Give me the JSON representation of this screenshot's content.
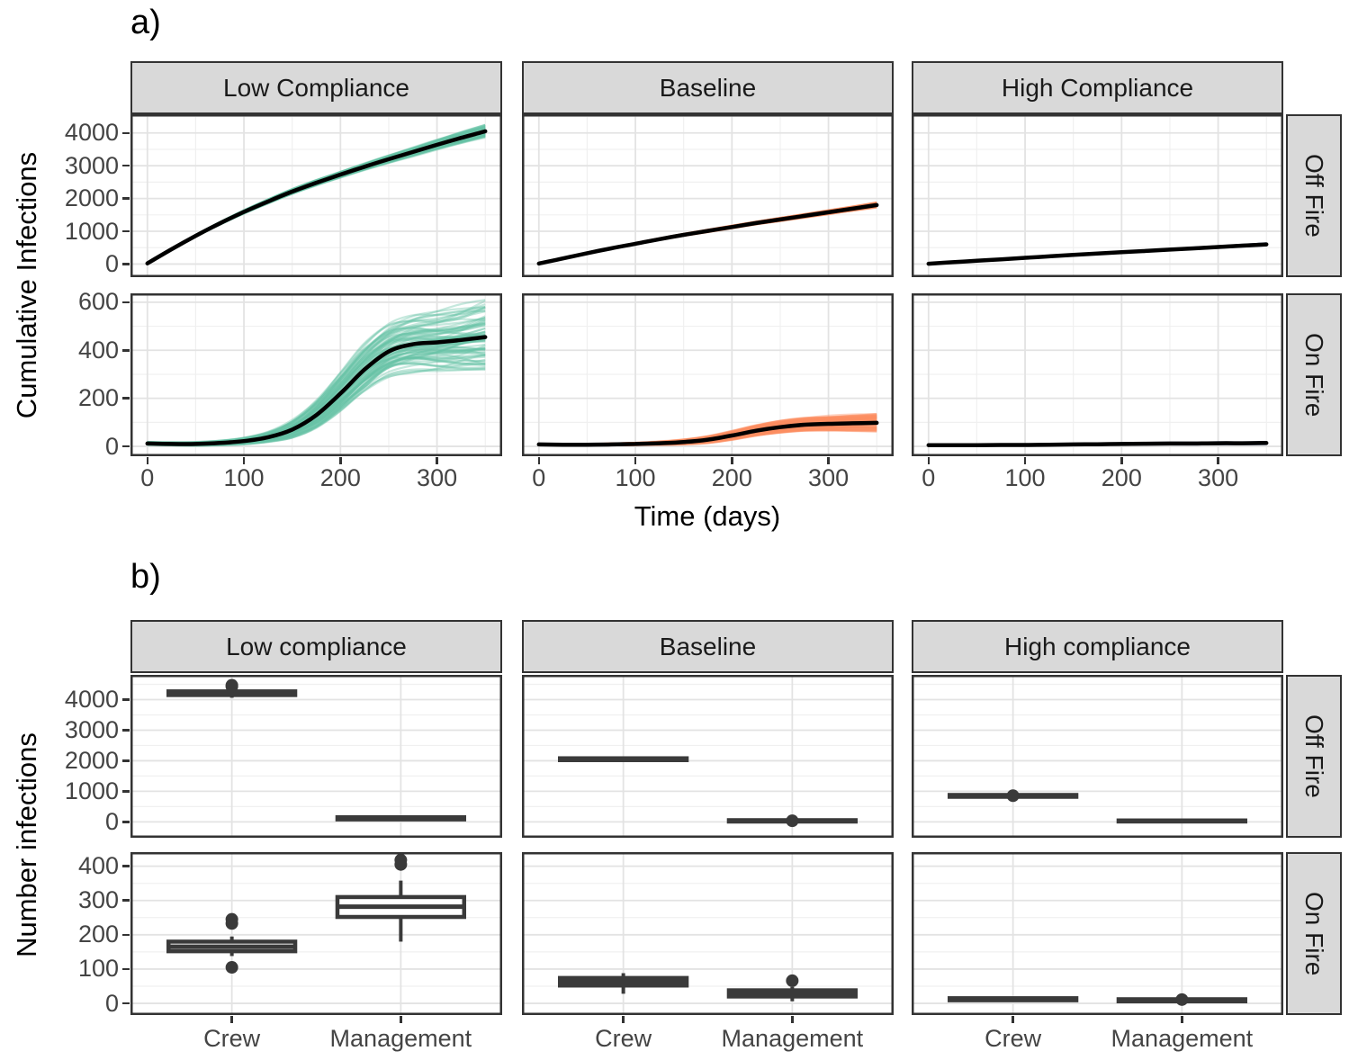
{
  "chart_data": [
    {
      "type": "line",
      "tag": "a)",
      "y_label": "Cumulative Infections",
      "x_label": "Time (days)",
      "col_strips": [
        "Low Compliance",
        "Baseline",
        "High Compliance"
      ],
      "row_strips": [
        "Off Fire",
        "On Fire"
      ],
      "x_ticks": [
        0,
        100,
        200,
        300
      ],
      "x_minor": [
        50,
        150,
        250,
        350
      ],
      "x_domain": [
        -17.5,
        367.5
      ],
      "rows": [
        {
          "y_ticks": [
            0,
            1000,
            2000,
            3000,
            4000
          ],
          "y_minor": [
            500,
            1500,
            2500,
            3500,
            4500
          ],
          "y_domain": [
            -400,
            4570
          ]
        },
        {
          "y_ticks": [
            0,
            200,
            400,
            600
          ],
          "y_minor": [
            100,
            300,
            500
          ],
          "y_domain": [
            -41,
            637
          ]
        }
      ],
      "t": [
        0,
        25,
        50,
        75,
        100,
        125,
        150,
        175,
        200,
        225,
        250,
        275,
        300,
        325,
        350
      ],
      "mean_color": "#000000",
      "facets": [
        {
          "row": 0,
          "col": 0,
          "name": "Low Compliance / Off Fire",
          "color": "#66C2A5",
          "runs": 70,
          "mean": [
            20,
            450,
            860,
            1240,
            1590,
            1910,
            2210,
            2480,
            2730,
            2970,
            3200,
            3420,
            3640,
            3850,
            4050
          ],
          "spread": [
            6,
            18,
            28,
            38,
            48,
            58,
            68,
            78,
            88,
            98,
            110,
            122,
            136,
            152,
            175
          ]
        },
        {
          "row": 0,
          "col": 1,
          "name": "Baseline / Off Fire",
          "color": "#FC8D62",
          "runs": 70,
          "mean": [
            15,
            170,
            330,
            480,
            620,
            760,
            890,
            1010,
            1130,
            1250,
            1360,
            1470,
            1580,
            1690,
            1800
          ],
          "spread": [
            4,
            8,
            12,
            16,
            20,
            24,
            28,
            32,
            36,
            40,
            45,
            50,
            55,
            60,
            68
          ]
        },
        {
          "row": 0,
          "col": 2,
          "name": "High Compliance / Off Fire",
          "color": "#8DA0CB",
          "runs": 70,
          "mean": [
            10,
            55,
            100,
            145,
            190,
            235,
            278,
            320,
            360,
            400,
            440,
            480,
            520,
            560,
            600
          ],
          "spread": [
            2,
            4,
            6,
            8,
            10,
            12,
            14,
            16,
            18,
            20,
            22,
            24,
            26,
            28,
            32
          ]
        },
        {
          "row": 1,
          "col": 0,
          "name": "Low Compliance / On Fire",
          "color": "#66C2A5",
          "runs": 80,
          "mean": [
            12,
            10,
            10,
            14,
            22,
            38,
            70,
            130,
            220,
            320,
            395,
            425,
            433,
            443,
            455
          ],
          "spread": [
            6,
            6,
            7,
            9,
            13,
            20,
            35,
            55,
            75,
            90,
            100,
            110,
            118,
            128,
            140
          ]
        },
        {
          "row": 1,
          "col": 1,
          "name": "Baseline / On Fire",
          "color": "#FC8D62",
          "runs": 70,
          "mean": [
            8,
            7,
            7,
            8,
            10,
            13,
            18,
            28,
            45,
            65,
            80,
            90,
            94,
            96,
            98
          ],
          "spread": [
            3,
            3,
            3,
            4,
            5,
            7,
            10,
            14,
            18,
            22,
            26,
            28,
            30,
            32,
            35
          ]
        },
        {
          "row": 1,
          "col": 2,
          "name": "High Compliance / On Fire",
          "color": "#8DA0CB",
          "runs": 60,
          "mean": [
            5,
            5,
            5,
            6,
            6,
            7,
            8,
            9,
            10,
            11,
            12,
            12,
            13,
            13,
            14
          ],
          "spread": [
            1.5,
            1.5,
            2,
            2,
            2.5,
            2.5,
            3,
            3,
            3.5,
            3.5,
            4,
            4,
            4.5,
            4.5,
            5
          ]
        }
      ]
    },
    {
      "type": "boxplot",
      "tag": "b)",
      "y_label": "Number infections",
      "col_strips": [
        "Low compliance",
        "Baseline",
        "High compliance"
      ],
      "row_strips": [
        "Off Fire",
        "On Fire"
      ],
      "categories": [
        "Crew",
        "Management"
      ],
      "box_color": "#3a3a3a",
      "rows": [
        {
          "y_ticks": [
            0,
            1000,
            2000,
            3000,
            4000
          ],
          "y_minor": [
            500,
            1500,
            2500,
            3500,
            4500
          ],
          "y_domain": [
            -520,
            4810
          ]
        },
        {
          "y_ticks": [
            0,
            100,
            200,
            300,
            400
          ],
          "y_minor": [
            50,
            150,
            250,
            350
          ],
          "y_domain": [
            -34,
            441
          ]
        }
      ],
      "facets": [
        {
          "row": 0,
          "col": 0,
          "boxes": [
            {
              "category": "Crew",
              "whisker_low": 4060,
              "q1": 4150,
              "median": 4200,
              "q3": 4270,
              "whisker_high": 4330,
              "outliers": [
                4430,
                4470
              ]
            },
            {
              "category": "Management",
              "whisker_low": 40,
              "q1": 80,
              "median": 115,
              "q3": 150,
              "whisker_high": 190,
              "outliers": []
            }
          ]
        },
        {
          "row": 0,
          "col": 1,
          "boxes": [
            {
              "category": "Crew",
              "whisker_low": 1990,
              "q1": 2020,
              "median": 2050,
              "q3": 2080,
              "whisker_high": 2110,
              "outliers": []
            },
            {
              "category": "Management",
              "whisker_low": 0,
              "q1": 10,
              "median": 30,
              "q3": 55,
              "whisker_high": 85,
              "outliers": [
                35
              ]
            }
          ]
        },
        {
          "row": 0,
          "col": 2,
          "boxes": [
            {
              "category": "Crew",
              "whisker_low": 790,
              "q1": 820,
              "median": 850,
              "q3": 880,
              "whisker_high": 915,
              "outliers": [
                855
              ]
            },
            {
              "category": "Management",
              "whisker_low": 0,
              "q1": 12,
              "median": 28,
              "q3": 45,
              "whisker_high": 70,
              "outliers": []
            }
          ]
        },
        {
          "row": 1,
          "col": 0,
          "boxes": [
            {
              "category": "Crew",
              "whisker_low": 138,
              "q1": 152,
              "median": 165,
              "q3": 180,
              "whisker_high": 195,
              "outliers": [
                105,
                233,
                245
              ]
            },
            {
              "category": "Management",
              "whisker_low": 180,
              "q1": 252,
              "median": 282,
              "q3": 310,
              "whisker_high": 358,
              "outliers": [
                405,
                418
              ]
            }
          ]
        },
        {
          "row": 1,
          "col": 1,
          "boxes": [
            {
              "category": "Crew",
              "whisker_low": 28,
              "q1": 52,
              "median": 63,
              "q3": 74,
              "whisker_high": 88,
              "outliers": []
            },
            {
              "category": "Management",
              "whisker_low": 6,
              "q1": 20,
              "median": 29,
              "q3": 38,
              "whisker_high": 48,
              "outliers": [
                66
              ]
            }
          ]
        },
        {
          "row": 1,
          "col": 2,
          "boxes": [
            {
              "category": "Crew",
              "whisker_low": 6,
              "q1": 9,
              "median": 12,
              "q3": 15,
              "whisker_high": 18,
              "outliers": []
            },
            {
              "category": "Management",
              "whisker_low": 3,
              "q1": 6,
              "median": 9,
              "q3": 12,
              "whisker_high": 15,
              "outliers": [
                11
              ]
            }
          ]
        }
      ]
    }
  ]
}
